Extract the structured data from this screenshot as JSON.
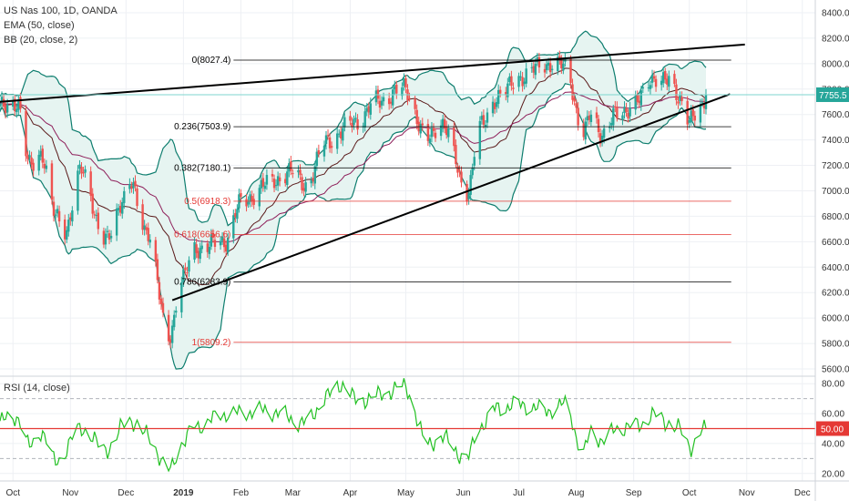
{
  "chart_data": {
    "type": "candlestick",
    "title": "US Nas 100, 1D, OANDA",
    "indicators_main": [
      "EMA (50, close)",
      "BB (20, close, 2)"
    ],
    "price_axis": {
      "ticks": [
        5600,
        5800,
        6000,
        6200,
        6400,
        6600,
        6800,
        7000,
        7200,
        7400,
        7600,
        7800,
        8000,
        8200,
        8400
      ],
      "tick_labels": [
        "5600.0",
        "5800.0",
        "6000.0",
        "6200.0",
        "6400.0",
        "6600.0",
        "6800.0",
        "7000.0",
        "7200.0",
        "7400.0",
        "7600.0",
        "7800.0",
        "8000.0",
        "8200.0",
        "8400.0"
      ],
      "ylim": [
        5550,
        8500
      ],
      "last_price": 7755.5,
      "last_price_label": "7755.5"
    },
    "x_axis": {
      "labels": [
        "Oct",
        "Nov",
        "Dec",
        "2019",
        "Feb",
        "Mar",
        "Apr",
        "May",
        "Jun",
        "Jul",
        "Aug",
        "Sep",
        "Oct",
        "Nov",
        "Dec"
      ],
      "date_range": [
        "2018-09-24",
        "2019-12-08"
      ]
    },
    "fibonacci": [
      {
        "label": "0(8027.4)",
        "level": 8027.4,
        "color": "#000000"
      },
      {
        "label": "0.236(7503.9)",
        "level": 7503.9,
        "color": "#000000"
      },
      {
        "label": "0.382(7180.1)",
        "level": 7180.1,
        "color": "#000000"
      },
      {
        "label": "0.5(6918.3)",
        "level": 6918.3,
        "color": "#e53935"
      },
      {
        "label": "0.618(6656.6)",
        "level": 6656.6,
        "color": "#e53935"
      },
      {
        "label": "0.786(6283.9)",
        "level": 6283.9,
        "color": "#000000"
      },
      {
        "label": "1(5809.2)",
        "level": 5809.2,
        "color": "#e53935"
      }
    ],
    "trendlines": [
      {
        "name": "upper",
        "from": [
          "2018-09-24",
          7700
        ],
        "to": [
          "2019-10-31",
          8150
        ]
      },
      {
        "name": "lower",
        "from": [
          "2018-12-26",
          6140
        ],
        "to": [
          "2019-10-23",
          7760
        ]
      }
    ],
    "rsi": {
      "label": "RSI (14, close)",
      "ticks": [
        20,
        40,
        60,
        80
      ],
      "tick_labels": [
        "20.00",
        "40.00",
        "60.00",
        "80.00"
      ],
      "ylim": [
        15,
        85
      ],
      "level": 50,
      "level_label": "50.00",
      "bands": [
        30,
        70
      ]
    },
    "colors": {
      "up": "#26a69a",
      "down": "#ef5350",
      "ema": "#8e1f5a",
      "bb_band": "#0d7d6e",
      "bb_basis": "#5a1a1a",
      "bb_fill": "#e6f4f1",
      "price_line": "#7fd6cf",
      "price_label_bg": "#26a69a",
      "rsi_line": "#22c022",
      "rsi_level": "#e53935"
    },
    "anchors": [
      [
        "2018-09-24",
        7650
      ],
      [
        "2018-10-03",
        7700
      ],
      [
        "2018-10-10",
        7200
      ],
      [
        "2018-10-16",
        7300
      ],
      [
        "2018-10-24",
        6800
      ],
      [
        "2018-10-29",
        6700
      ],
      [
        "2018-11-07",
        7150
      ],
      [
        "2018-11-20",
        6600
      ],
      [
        "2018-11-30",
        6950
      ],
      [
        "2018-12-03",
        7050
      ],
      [
        "2018-12-12",
        6700
      ],
      [
        "2018-12-24",
        5850
      ],
      [
        "2018-12-31",
        6300
      ],
      [
        "2019-01-08",
        6550
      ],
      [
        "2019-01-23",
        6600
      ],
      [
        "2019-02-01",
        6900
      ],
      [
        "2019-02-15",
        7050
      ],
      [
        "2019-02-28",
        7150
      ],
      [
        "2019-03-08",
        7050
      ],
      [
        "2019-03-20",
        7400
      ],
      [
        "2019-04-05",
        7550
      ],
      [
        "2019-04-15",
        7700
      ],
      [
        "2019-04-30",
        7800
      ],
      [
        "2019-05-13",
        7400
      ],
      [
        "2019-05-20",
        7550
      ],
      [
        "2019-06-03",
        7000
      ],
      [
        "2019-06-10",
        7500
      ],
      [
        "2019-06-20",
        7750
      ],
      [
        "2019-07-03",
        7900
      ],
      [
        "2019-07-15",
        8000
      ],
      [
        "2019-07-26",
        7980
      ],
      [
        "2019-08-05",
        7450
      ],
      [
        "2019-08-09",
        7600
      ],
      [
        "2019-08-15",
        7450
      ],
      [
        "2019-08-23",
        7600
      ],
      [
        "2019-09-03",
        7700
      ],
      [
        "2019-09-12",
        7900
      ],
      [
        "2019-09-20",
        7850
      ],
      [
        "2019-09-25",
        7750
      ],
      [
        "2019-10-02",
        7550
      ],
      [
        "2019-10-08",
        7650
      ],
      [
        "2019-10-10",
        7755.5
      ]
    ],
    "rsi_anchors": [
      [
        "2018-09-24",
        55
      ],
      [
        "2018-10-03",
        58
      ],
      [
        "2018-10-10",
        38
      ],
      [
        "2018-10-16",
        48
      ],
      [
        "2018-10-24",
        28
      ],
      [
        "2018-11-07",
        50
      ],
      [
        "2018-11-20",
        36
      ],
      [
        "2018-12-03",
        56
      ],
      [
        "2018-12-12",
        46
      ],
      [
        "2018-12-24",
        22
      ],
      [
        "2018-12-31",
        40
      ],
      [
        "2019-01-08",
        52
      ],
      [
        "2019-01-25",
        60
      ],
      [
        "2019-02-15",
        62
      ],
      [
        "2019-03-08",
        54
      ],
      [
        "2019-03-20",
        72
      ],
      [
        "2019-03-28",
        80
      ],
      [
        "2019-04-05",
        68
      ],
      [
        "2019-04-15",
        72
      ],
      [
        "2019-04-30",
        78
      ],
      [
        "2019-05-13",
        40
      ],
      [
        "2019-05-20",
        44
      ],
      [
        "2019-06-03",
        30
      ],
      [
        "2019-06-10",
        52
      ],
      [
        "2019-06-20",
        64
      ],
      [
        "2019-07-03",
        66
      ],
      [
        "2019-07-15",
        62
      ],
      [
        "2019-07-26",
        66
      ],
      [
        "2019-08-05",
        34
      ],
      [
        "2019-08-09",
        48
      ],
      [
        "2019-08-15",
        42
      ],
      [
        "2019-08-23",
        50
      ],
      [
        "2019-09-03",
        52
      ],
      [
        "2019-09-12",
        59
      ],
      [
        "2019-09-20",
        54
      ],
      [
        "2019-09-25",
        50
      ],
      [
        "2019-10-02",
        38
      ],
      [
        "2019-10-08",
        48
      ],
      [
        "2019-10-10",
        50
      ]
    ]
  }
}
